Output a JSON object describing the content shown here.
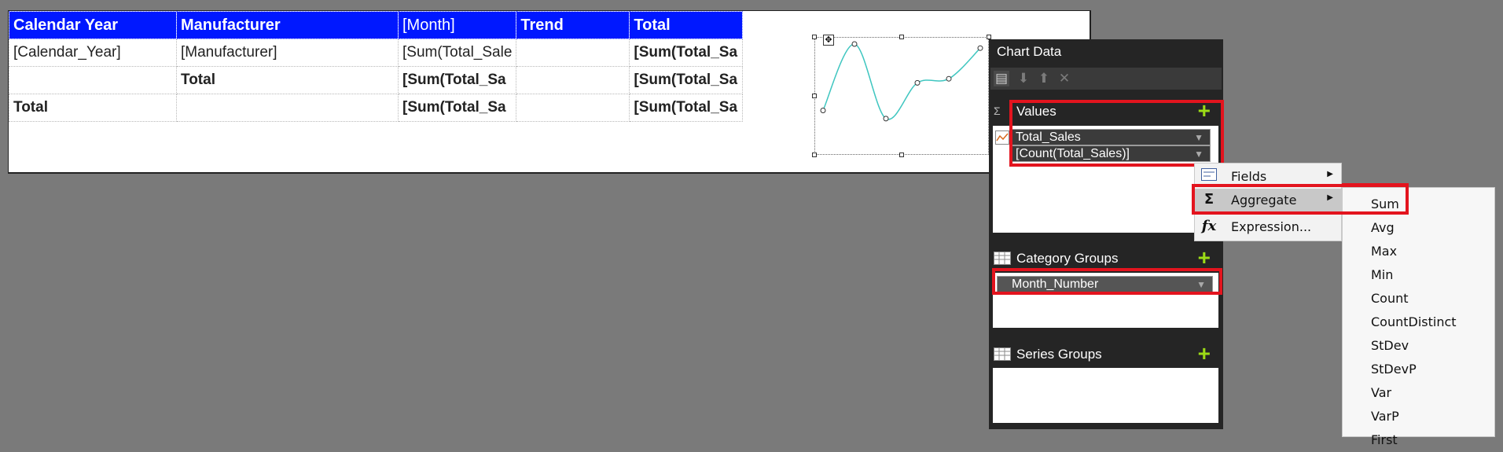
{
  "tablix": {
    "header": [
      "Calendar Year",
      "Manufacturer",
      "[Month]",
      "Trend",
      "Total"
    ],
    "rows": [
      [
        "[Calendar_Year]",
        "[Manufacturer]",
        "[Sum(Total_Sale",
        "",
        "[Sum(Total_Sa"
      ],
      [
        "",
        "Total",
        "[Sum(Total_Sa",
        "",
        "[Sum(Total_Sa"
      ],
      [
        "Total",
        "",
        "[Sum(Total_Sa",
        "",
        "[Sum(Total_Sa"
      ]
    ]
  },
  "chart_data": {
    "type": "line",
    "title": "",
    "x": [
      1,
      2,
      3,
      4,
      5,
      6
    ],
    "series": [
      {
        "values": [
          0.35,
          1.0,
          0.27,
          0.62,
          0.66,
          0.96
        ]
      }
    ],
    "color": "#3fc6c0"
  },
  "chart_pane": {
    "title": "Chart Data",
    "values_label": "Values",
    "values_fields": [
      "Total_Sales",
      "[Count(Total_Sales)]"
    ],
    "category_label": "Category Groups",
    "category_fields": [
      "Month_Number"
    ],
    "series_label": "Series Groups"
  },
  "context_menu": {
    "items": [
      {
        "label": "Fields",
        "icon": "fields-icon"
      },
      {
        "label": "Aggregate",
        "icon": "sigma-icon"
      },
      {
        "label": "Expression...",
        "icon": "fx-icon"
      }
    ]
  },
  "aggregate_menu": {
    "items": [
      "Sum",
      "Avg",
      "Max",
      "Min",
      "Count",
      "CountDistinct",
      "StDev",
      "StDevP",
      "Var",
      "VarP",
      "First"
    ]
  },
  "colors": {
    "header_bg": "#0018ff",
    "highlight_border": "#e3141e",
    "add_plus": "#9cdb16"
  }
}
